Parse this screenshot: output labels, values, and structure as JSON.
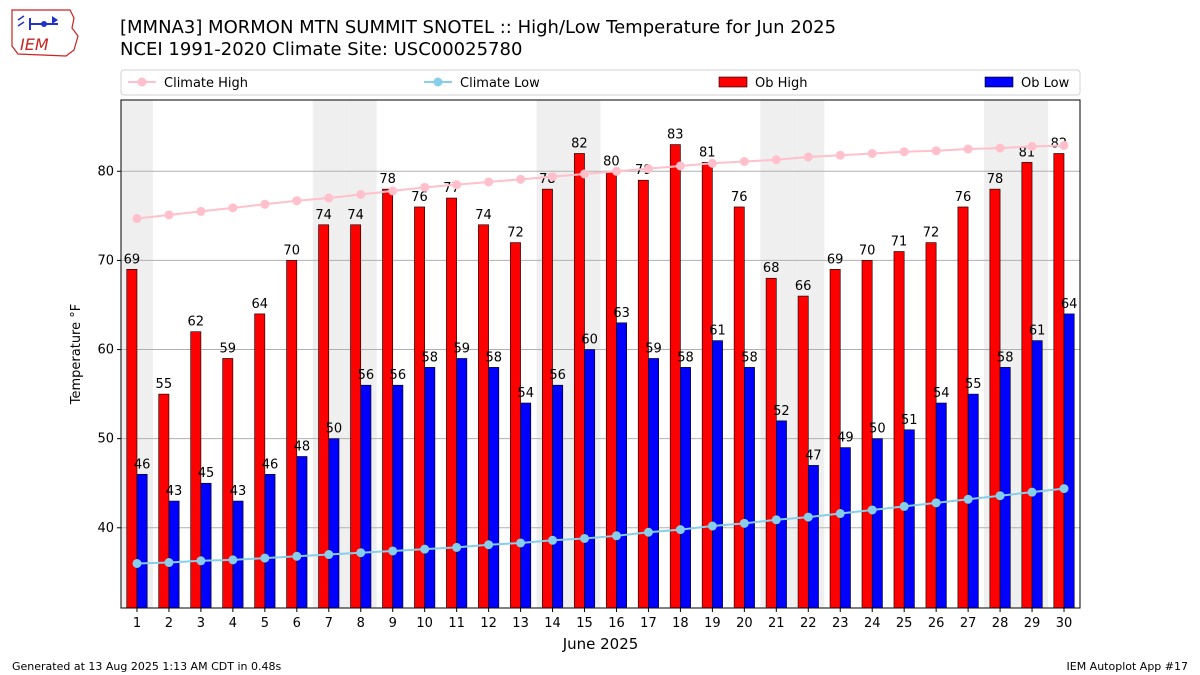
{
  "logo_text": "IEM",
  "header": {
    "title_line1": "[MMNA3] MORMON MTN SUMMIT SNOTEL :: High/Low Temperature for Jun 2025",
    "title_line2": "NCEI 1991-2020 Climate Site: USC00025780"
  },
  "footer": {
    "generated": "Generated at 13 Aug 2025 1:13 AM CDT in 0.48s",
    "app": "IEM Autoplot App #17"
  },
  "colors": {
    "ob_high": "#ff0000",
    "ob_low": "#0000ff",
    "climate_high": "#ffc0cb",
    "climate_low": "#87ceeb",
    "weekend_shade": "#efefef"
  },
  "chart_data": {
    "type": "bar",
    "xlabel": "June 2025",
    "ylabel": "Temperature °F",
    "ylim": [
      31,
      88
    ],
    "yticks": [
      40,
      50,
      60,
      70,
      80
    ],
    "grid": "horizontal",
    "legend_position": "top",
    "categories": [
      "1",
      "2",
      "3",
      "4",
      "5",
      "6",
      "7",
      "8",
      "9",
      "10",
      "11",
      "12",
      "13",
      "14",
      "15",
      "16",
      "17",
      "18",
      "19",
      "20",
      "21",
      "22",
      "23",
      "24",
      "25",
      "26",
      "27",
      "28",
      "29",
      "30"
    ],
    "shaded_days": [
      "1",
      "7",
      "8",
      "14",
      "15",
      "21",
      "22",
      "28",
      "29"
    ],
    "series": [
      {
        "name": "Climate High",
        "kind": "line",
        "values": [
          74.7,
          75.1,
          75.5,
          75.9,
          76.3,
          76.7,
          77.0,
          77.4,
          77.8,
          78.2,
          78.5,
          78.8,
          79.1,
          79.4,
          79.7,
          80.0,
          80.3,
          80.6,
          80.9,
          81.1,
          81.3,
          81.6,
          81.8,
          82.0,
          82.2,
          82.3,
          82.5,
          82.6,
          82.8,
          82.9
        ]
      },
      {
        "name": "Climate Low",
        "kind": "line",
        "values": [
          36.0,
          36.1,
          36.3,
          36.4,
          36.6,
          36.8,
          37.0,
          37.2,
          37.4,
          37.6,
          37.8,
          38.1,
          38.3,
          38.6,
          38.8,
          39.1,
          39.5,
          39.8,
          40.2,
          40.5,
          40.9,
          41.2,
          41.6,
          42.0,
          42.4,
          42.8,
          43.2,
          43.6,
          44.0,
          44.4
        ]
      },
      {
        "name": "Ob High",
        "kind": "bar",
        "values": [
          69,
          55,
          62,
          59,
          64,
          70,
          74,
          74,
          78,
          76,
          77,
          74,
          72,
          78,
          82,
          80,
          79,
          83,
          81,
          76,
          68,
          66,
          69,
          70,
          71,
          72,
          76,
          78,
          81,
          82
        ]
      },
      {
        "name": "Ob Low",
        "kind": "bar",
        "values": [
          46,
          43,
          45,
          43,
          46,
          48,
          50,
          56,
          56,
          58,
          59,
          58,
          54,
          56,
          60,
          63,
          59,
          58,
          61,
          58,
          52,
          47,
          49,
          50,
          51,
          54,
          55,
          58,
          61,
          64
        ]
      }
    ]
  }
}
